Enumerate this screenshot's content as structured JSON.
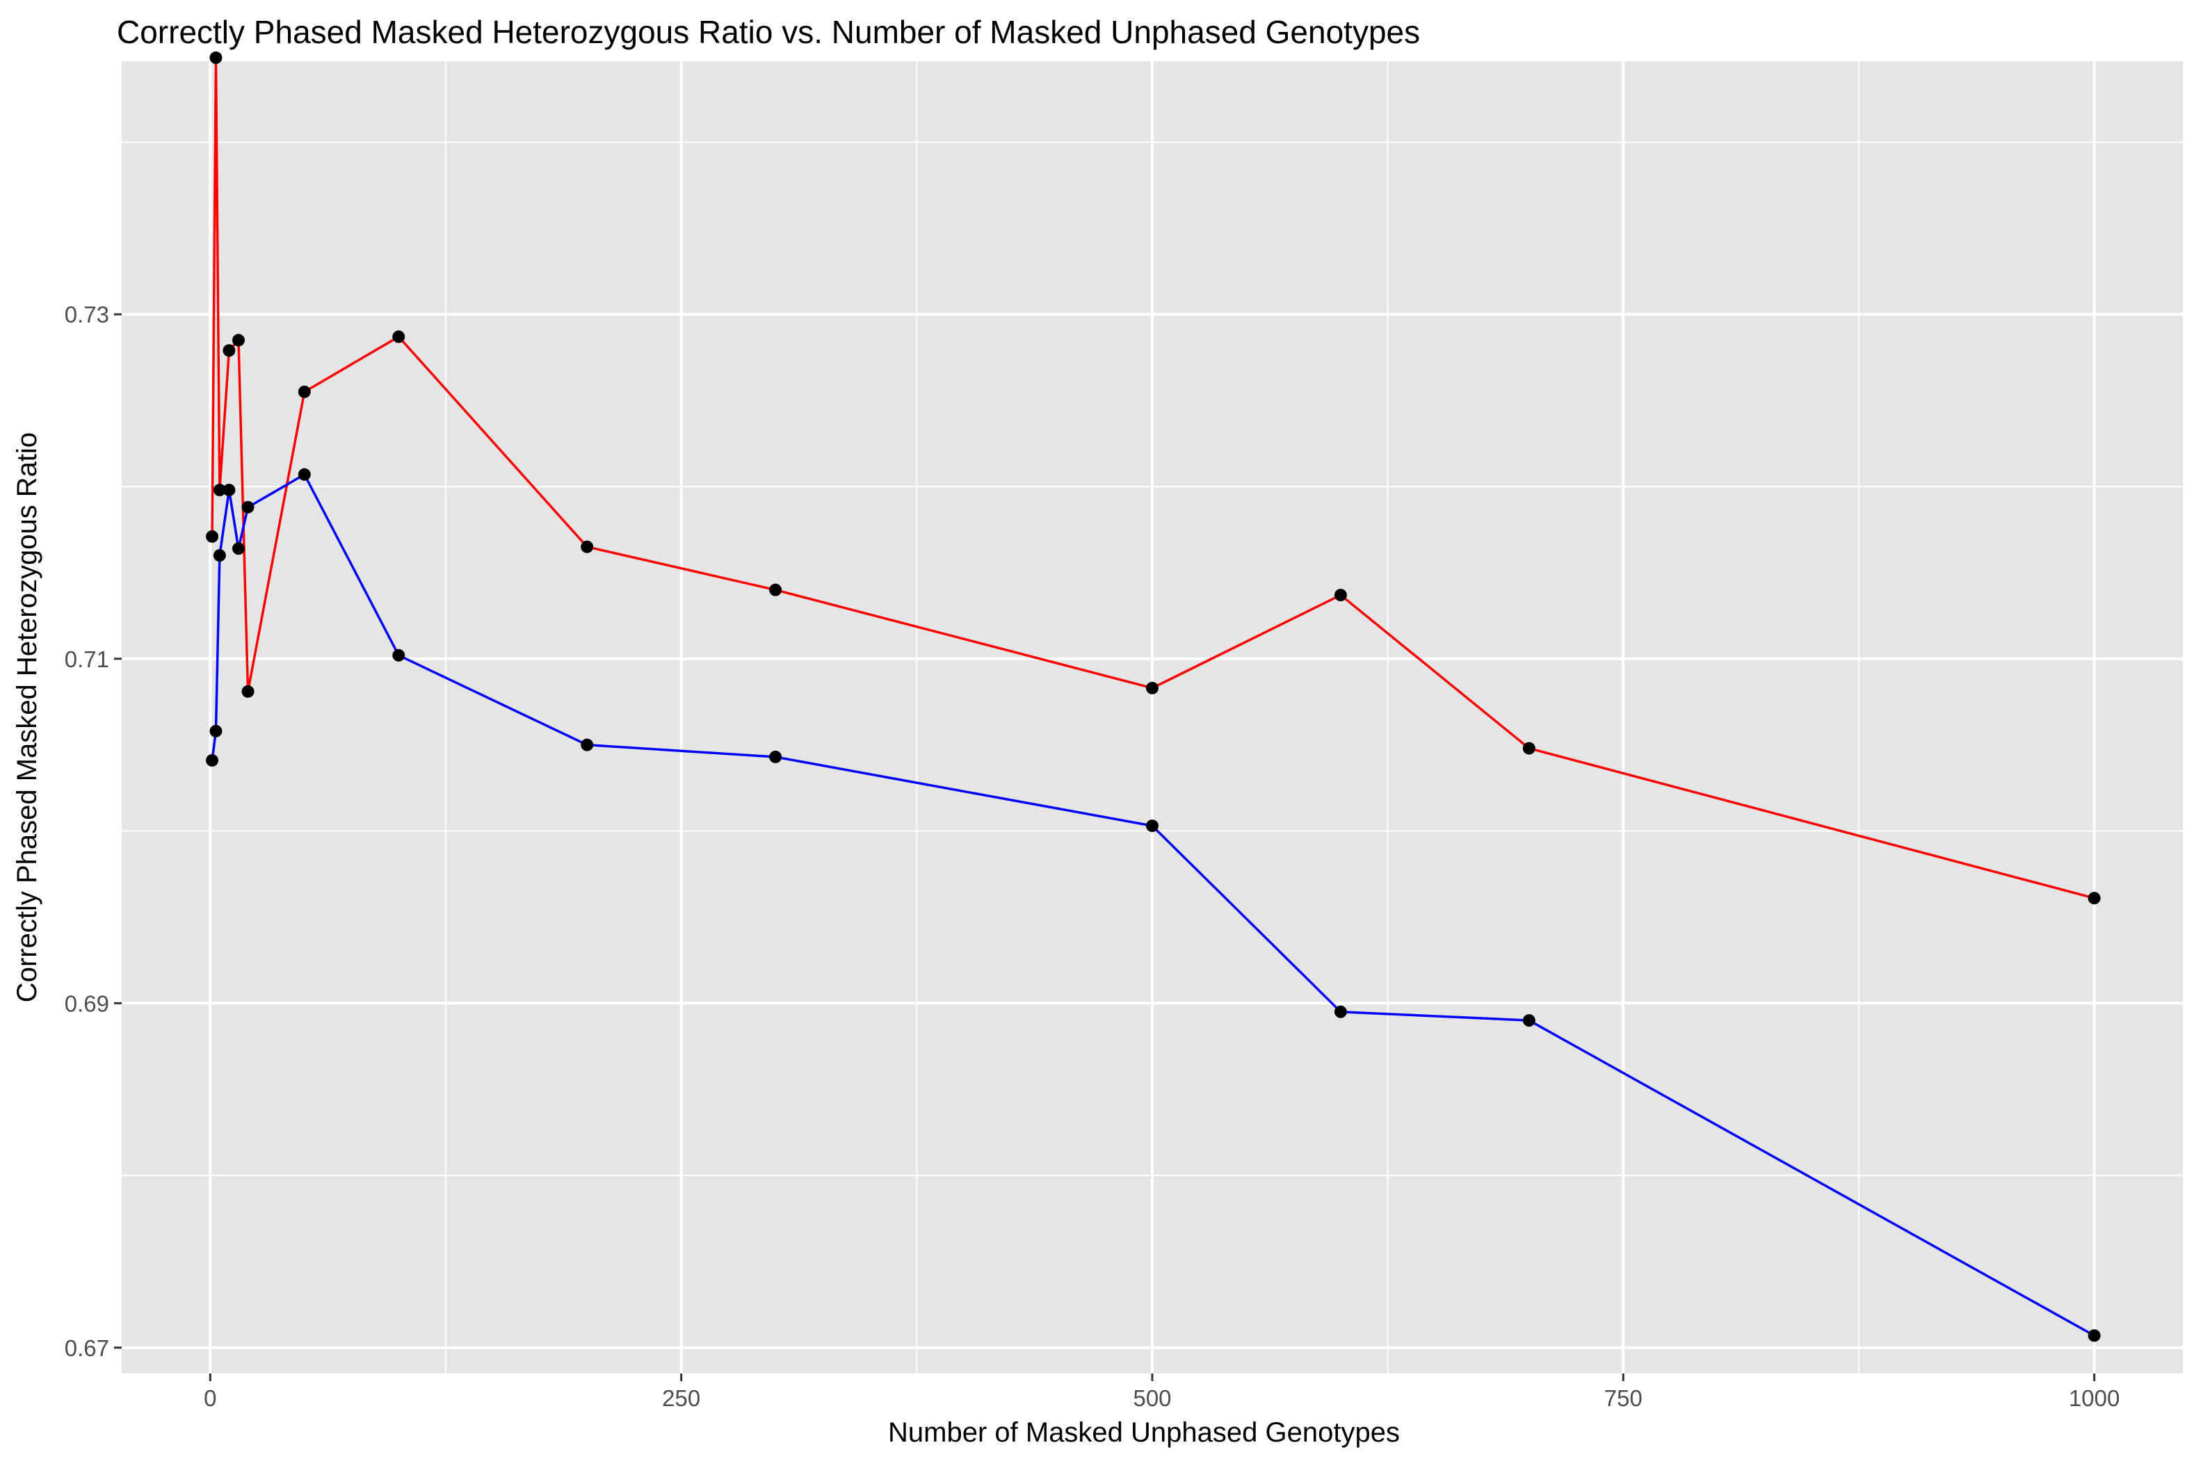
{
  "chart_data": {
    "type": "line",
    "title": "Correctly Phased Masked Heterozygous Ratio vs. Number of Masked Unphased Genotypes",
    "xlabel": "Number of Masked Unphased Genotypes",
    "ylabel": "Correctly Phased Masked Heterozygous Ratio",
    "xlim": [
      -47,
      1047
    ],
    "ylim": [
      0.6685,
      0.7447
    ],
    "x_ticks": [
      0,
      250,
      500,
      750,
      1000
    ],
    "x_tick_labels": [
      "0",
      "250",
      "500",
      "750",
      "1000"
    ],
    "y_ticks": [
      0.67,
      0.69,
      0.71,
      0.73
    ],
    "y_tick_labels": [
      "0.67",
      "0.69",
      "0.71",
      "0.73"
    ],
    "x_minor": [
      125,
      375,
      625,
      875
    ],
    "y_minor": [
      0.68,
      0.7,
      0.72,
      0.74
    ],
    "grid": true,
    "panel_background": "#e5e5e5",
    "grid_color": "#ffffff",
    "point_color": "#000000",
    "series": [
      {
        "color": "#ff0000",
        "x": [
          1,
          3,
          5,
          10,
          15,
          20,
          50,
          100,
          200,
          300,
          500,
          600,
          700,
          1000
        ],
        "y": [
          0.7171,
          0.7449,
          0.7198,
          0.7279,
          0.7285,
          0.7081,
          0.7255,
          0.7287,
          0.7165,
          0.714,
          0.7083,
          0.7137,
          0.7048,
          0.6961
        ]
      },
      {
        "color": "#0000ff",
        "x": [
          1,
          3,
          5,
          10,
          15,
          20,
          50,
          100,
          200,
          300,
          500,
          600,
          700,
          1000
        ],
        "y": [
          0.7041,
          0.7058,
          0.716,
          0.7198,
          0.7164,
          0.7188,
          0.7207,
          0.7102,
          0.705,
          0.7043,
          0.7003,
          0.6895,
          0.689,
          0.6707
        ]
      }
    ]
  }
}
